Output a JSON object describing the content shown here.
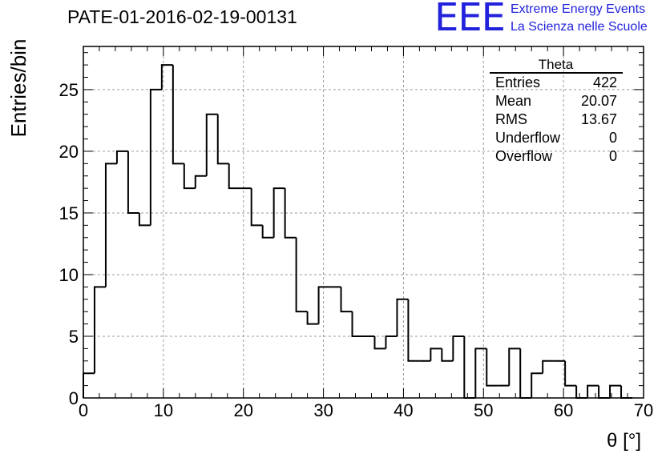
{
  "chart_data": {
    "type": "histogram",
    "title": "PATE-01-2016-02-19-00131",
    "xlabel": "θ [°]",
    "ylabel": "Entries/bin",
    "xlim": [
      0,
      70
    ],
    "ylim": [
      0,
      28.5
    ],
    "grid": true,
    "bin_width": 1.4,
    "bin_start": 0,
    "values": [
      2,
      9,
      19,
      20,
      15,
      14,
      25,
      27,
      19,
      17,
      18,
      23,
      19,
      17,
      17,
      14,
      13,
      17,
      13,
      7,
      6,
      9,
      9,
      7,
      5,
      5,
      4,
      5,
      8,
      3,
      3,
      4,
      3,
      5,
      0,
      4,
      1,
      1,
      4,
      0,
      2,
      3,
      3,
      1,
      0,
      1,
      0,
      1,
      0
    ],
    "x_ticks": [
      "0",
      "10",
      "20",
      "30",
      "40",
      "50",
      "60",
      "70"
    ],
    "y_ticks": [
      "0",
      "5",
      "10",
      "15",
      "20",
      "25"
    ],
    "stats_box": {
      "title": "Theta",
      "rows": [
        {
          "label": "Entries",
          "value": "422"
        },
        {
          "label": "Mean",
          "value": "20.07"
        },
        {
          "label": "RMS",
          "value": "13.67"
        },
        {
          "label": "Underflow",
          "value": "0"
        },
        {
          "label": "Overflow",
          "value": "0"
        }
      ]
    }
  },
  "logo": {
    "text": "EEE",
    "line1": "Extreme Energy Events",
    "line2": "La Scienza nelle Scuole",
    "color": "#2222dd"
  }
}
